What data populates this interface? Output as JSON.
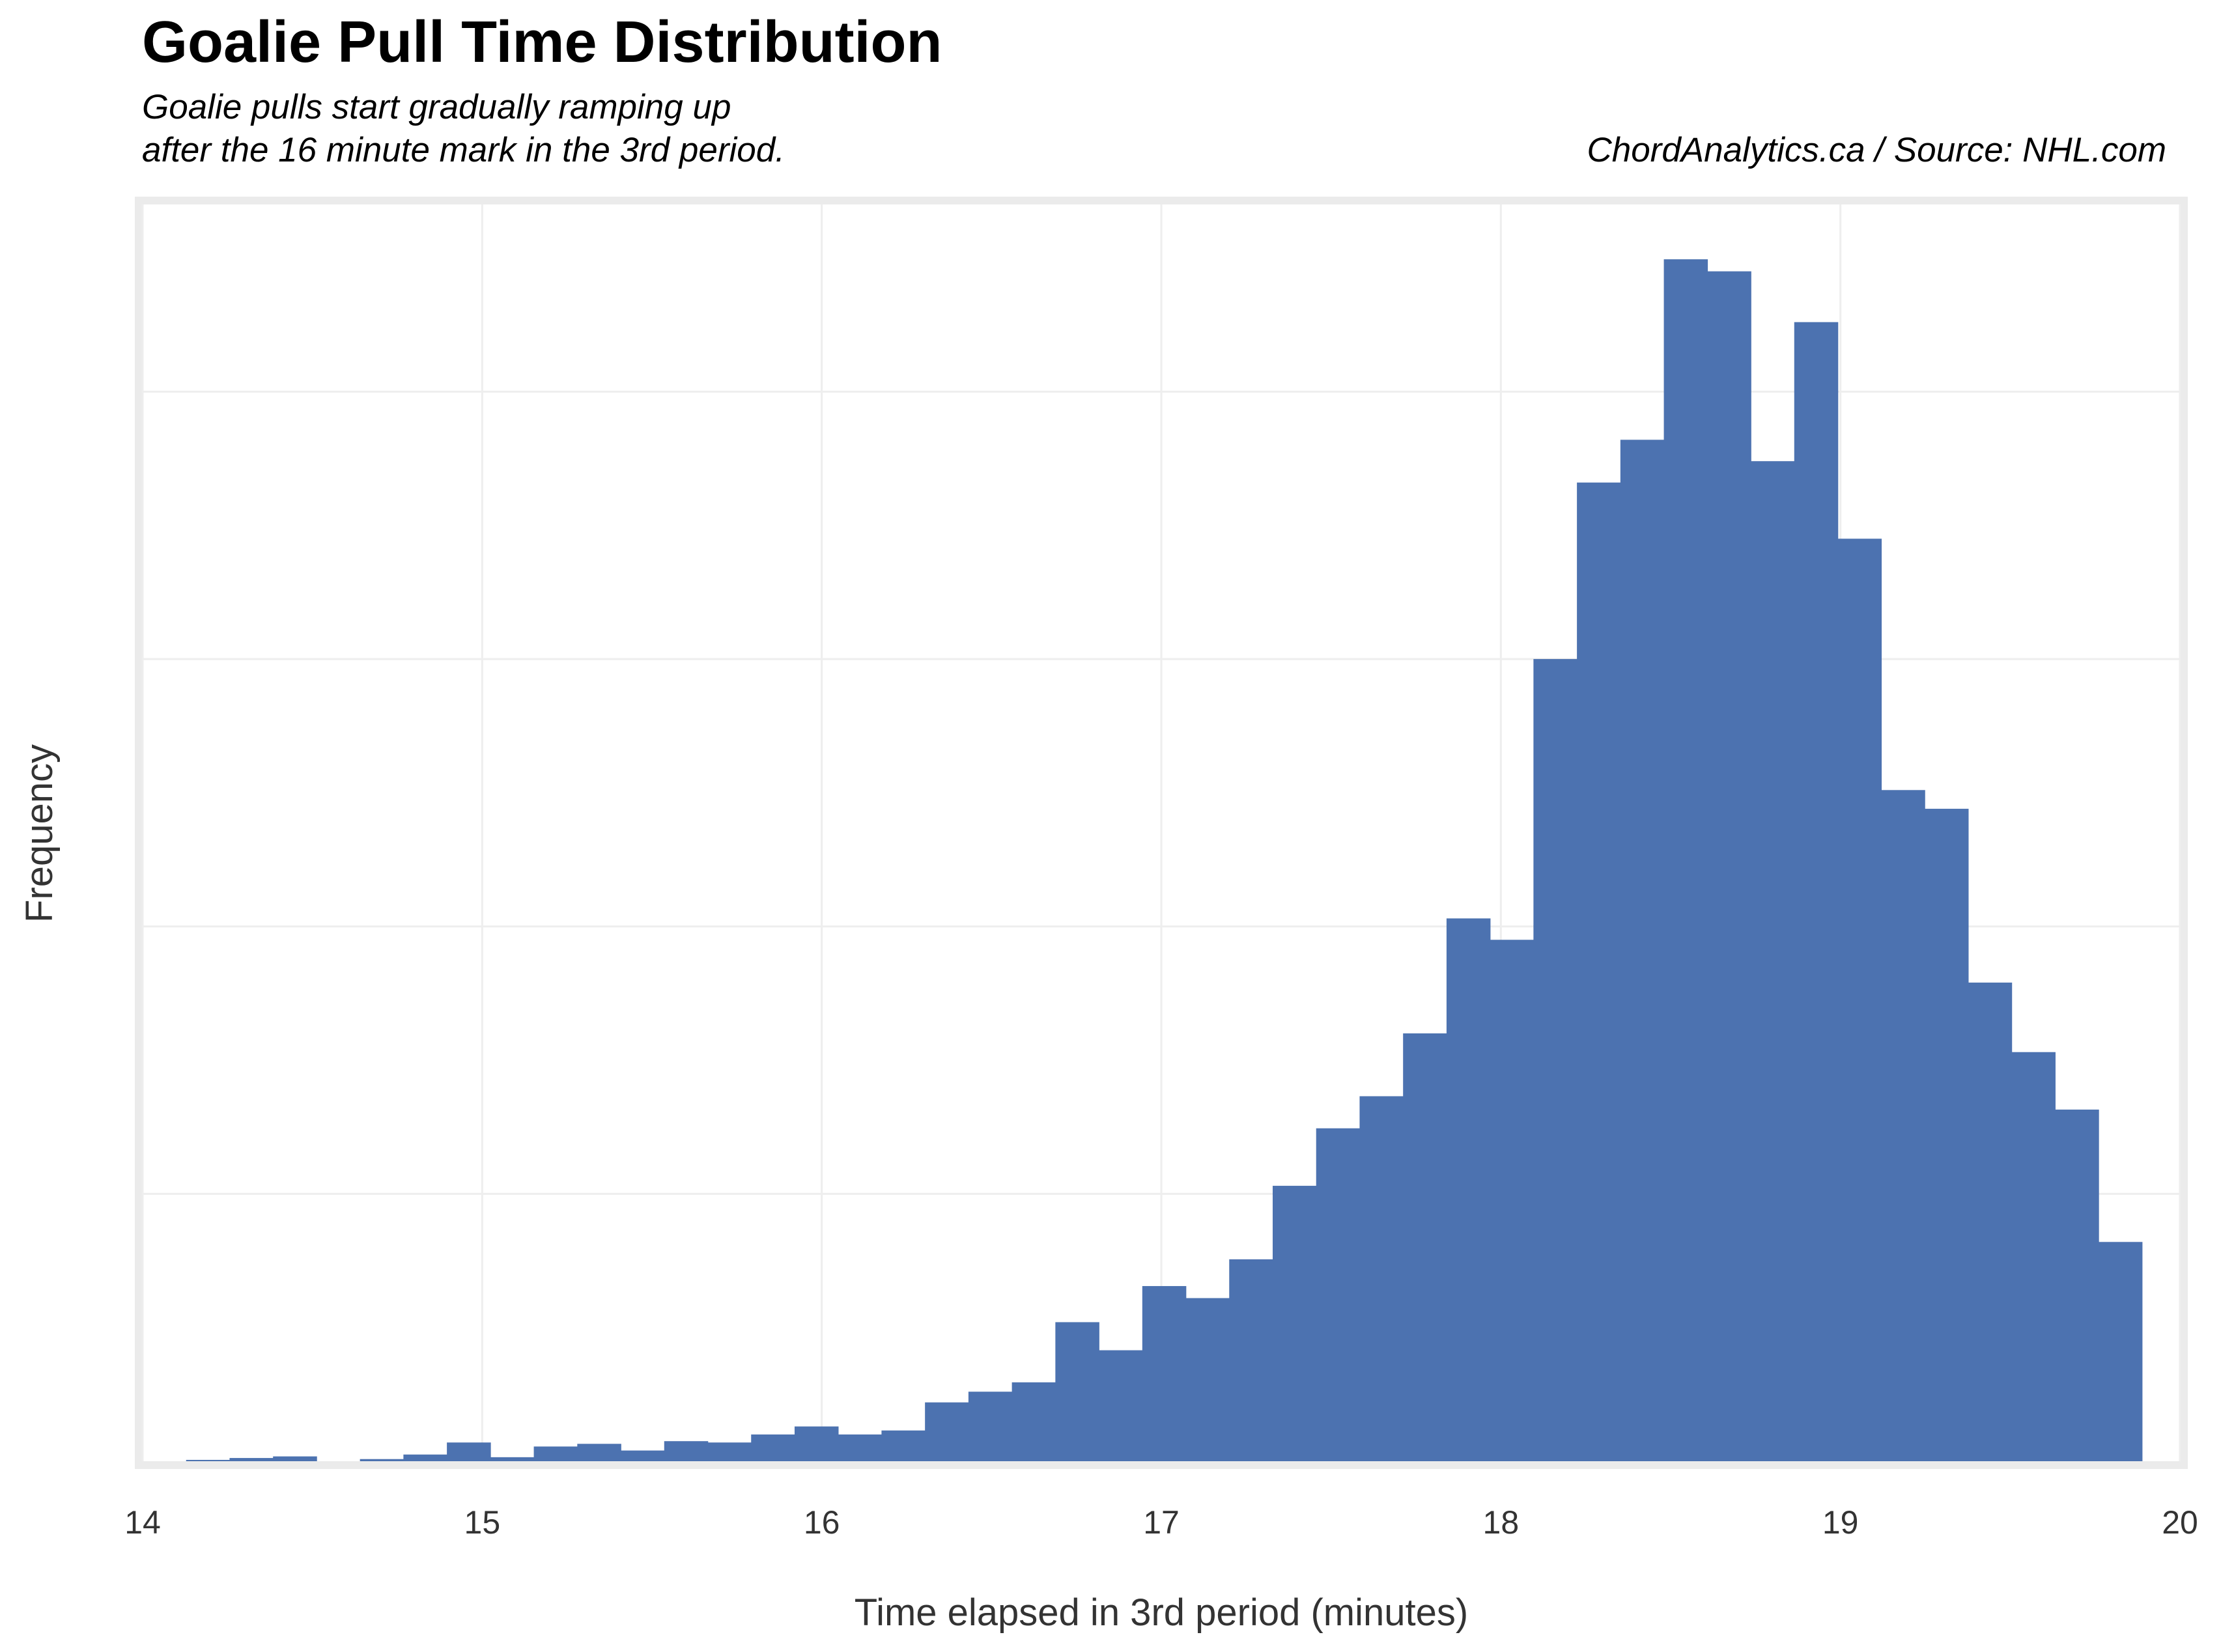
{
  "header": {
    "title": "Goalie Pull Time Distribution",
    "subtitle_line1": "Goalie pulls start gradually ramping up",
    "subtitle_line2": "after the 16 minute mark in the 3rd period.",
    "source": "ChordAnalytics.ca  /  Source: NHL.com"
  },
  "chart_data": {
    "type": "bar",
    "title": "Goalie Pull Time Distribution",
    "xlabel": "Time elapsed in 3rd period (minutes)",
    "ylabel": "Frequency",
    "xlim": [
      14,
      20
    ],
    "ylim": [
      0,
      4.7
    ],
    "x_ticks": [
      14,
      15,
      16,
      17,
      18,
      19,
      20
    ],
    "y_ticks_labeled": false,
    "grid": true,
    "bin_width": 0.128,
    "bin_start": 14.0,
    "bar_color": "#4c72b0",
    "values": [
      0.0,
      0.005,
      0.012,
      0.018,
      0.0,
      0.008,
      0.025,
      0.07,
      0.015,
      0.055,
      0.065,
      0.04,
      0.075,
      0.07,
      0.1,
      0.13,
      0.1,
      0.115,
      0.22,
      0.26,
      0.295,
      0.52,
      0.415,
      0.655,
      0.61,
      0.755,
      1.03,
      1.245,
      1.365,
      1.6,
      2.03,
      1.95,
      3.0,
      3.66,
      3.82,
      4.495,
      4.45,
      3.74,
      4.26,
      3.45,
      2.51,
      2.44,
      1.79,
      1.53,
      1.315,
      0.82
    ]
  }
}
